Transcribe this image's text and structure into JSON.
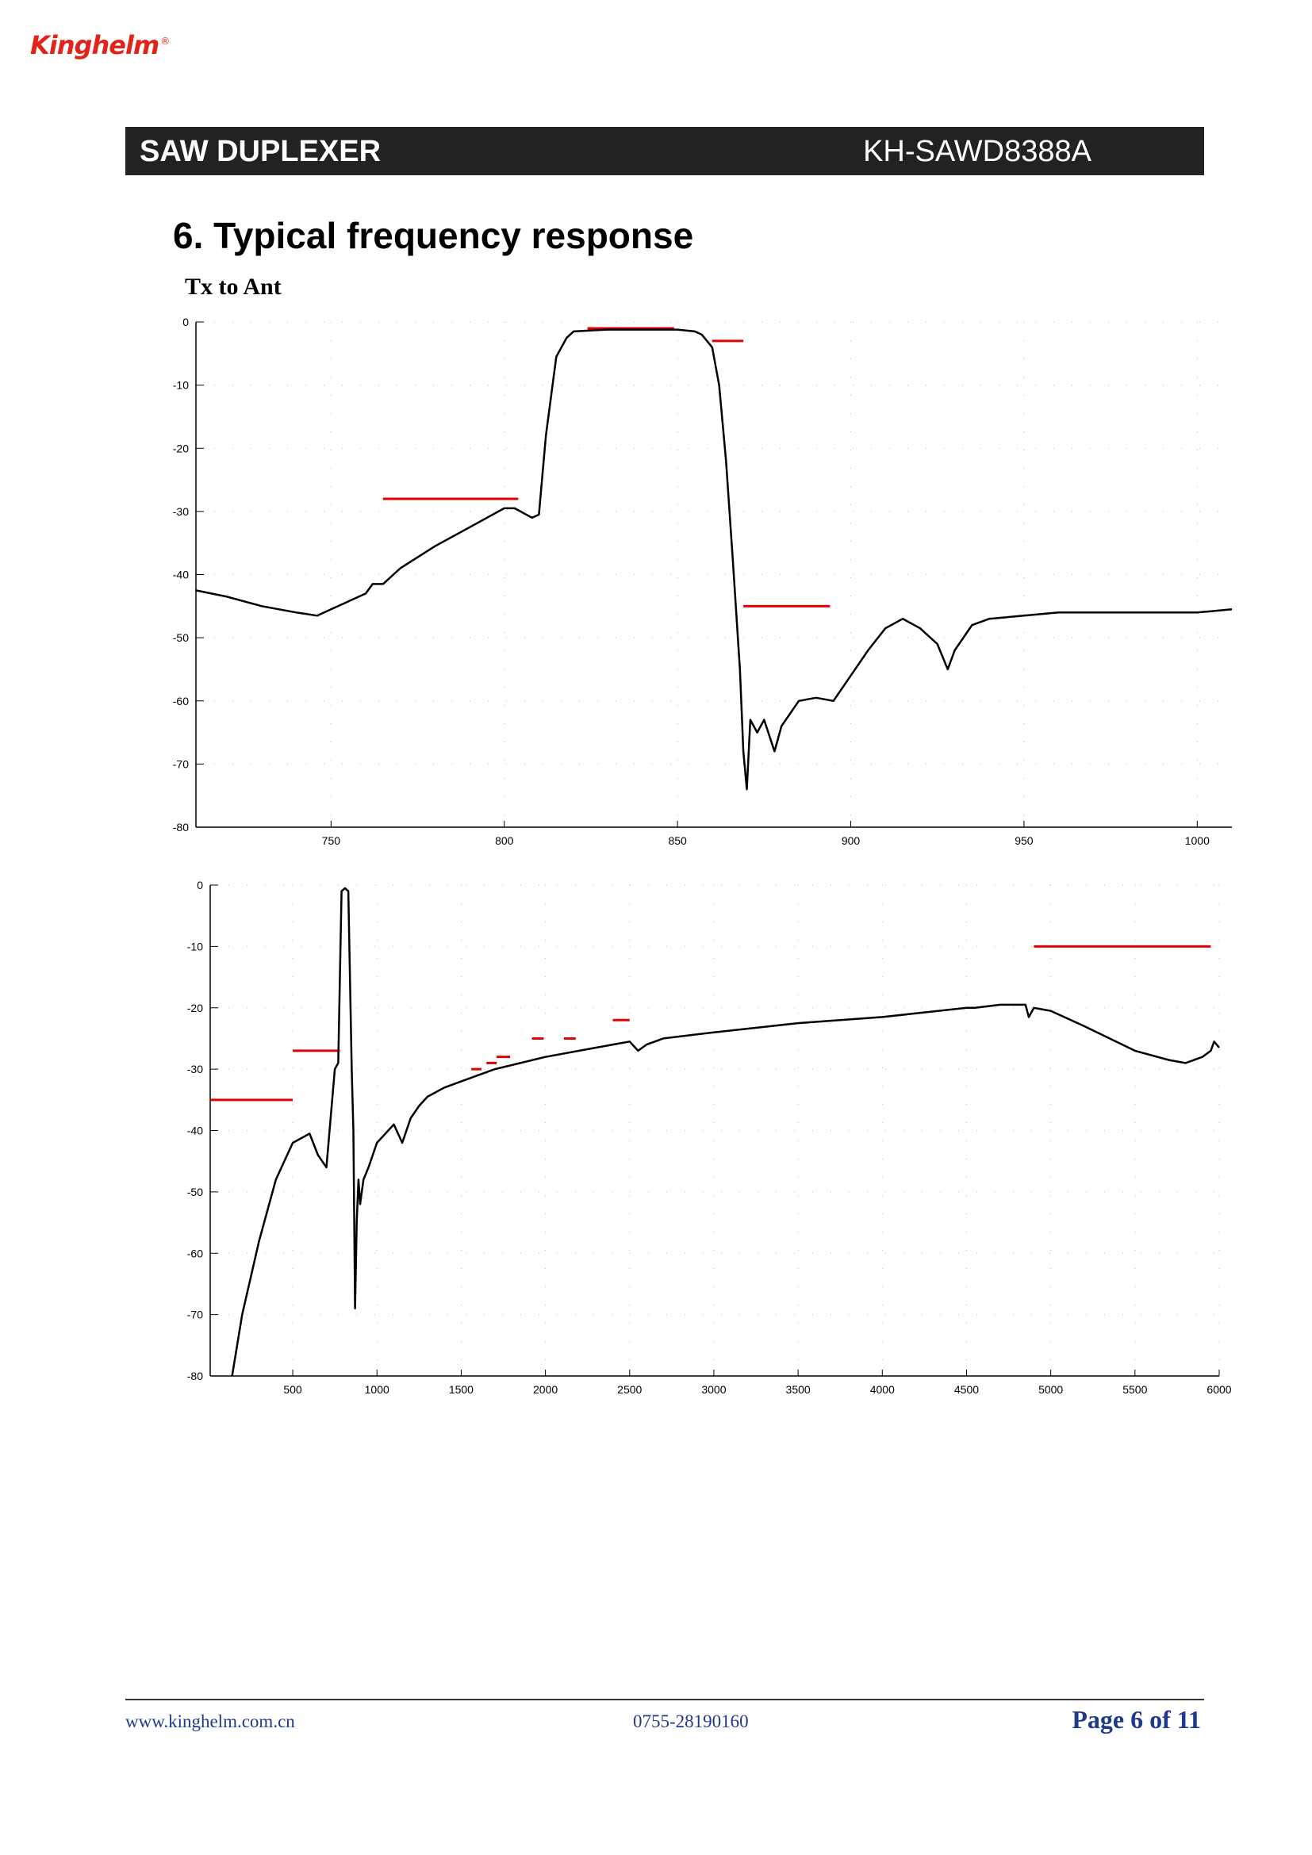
{
  "brand": {
    "name": "Kinghelm",
    "registered": "®"
  },
  "header": {
    "product_type": "SAW DUPLEXER",
    "part_number": "KH-SAWD8388A"
  },
  "section": {
    "title": "6. Typical frequency response"
  },
  "chart_data": [
    {
      "type": "line",
      "title": "Tx to Ant",
      "xlabel": "",
      "ylabel": "",
      "xlim": [
        711,
        1010
      ],
      "ylim": [
        -80,
        0
      ],
      "x_ticks": [
        "750",
        "800",
        "850",
        "900",
        "950",
        "1000"
      ],
      "y_ticks": [
        "0",
        "-10",
        "-20",
        "-30",
        "-40",
        "-50",
        "-60",
        "-70",
        "-80"
      ],
      "grid": true,
      "colors": {
        "trace": "#000000",
        "spec": "#e00000",
        "grid": "#bbbbbb"
      },
      "series": [
        {
          "x": [
            711,
            720,
            730,
            740,
            746,
            750,
            760,
            762,
            765,
            770,
            780,
            790,
            800,
            803,
            808,
            810,
            812,
            815,
            818,
            820,
            830,
            840,
            850,
            855,
            857,
            860,
            862,
            864,
            866,
            868,
            869,
            870,
            871,
            873,
            875,
            878,
            880,
            885,
            890,
            895,
            900,
            905,
            910,
            915,
            920,
            925,
            928,
            930,
            935,
            940,
            950,
            960,
            970,
            980,
            990,
            1000,
            1010
          ],
          "y": [
            -42.5,
            -43.5,
            -45,
            -46,
            -46.5,
            -45.5,
            -43,
            -41.5,
            -41.5,
            -39,
            -35.5,
            -32.5,
            -29.5,
            -29.5,
            -31,
            -30.5,
            -18,
            -5.5,
            -2.5,
            -1.5,
            -1.2,
            -1.2,
            -1.2,
            -1.5,
            -2,
            -4,
            -10,
            -22,
            -38,
            -55,
            -68,
            -74,
            -63,
            -65,
            -63,
            -68,
            -64,
            -60,
            -59.5,
            -60,
            -56,
            -52,
            -48.5,
            -47,
            -48.5,
            -51,
            -55,
            -52,
            -48,
            -47,
            -46.5,
            -46,
            -46,
            -46,
            -46,
            -46,
            -45.5
          ]
        }
      ],
      "spec_lines": [
        {
          "x": [
            765,
            804
          ],
          "y": -28
        },
        {
          "x": [
            824,
            849
          ],
          "y": -1
        },
        {
          "x": [
            860,
            869
          ],
          "y": -3
        },
        {
          "x": [
            869,
            894
          ],
          "y": -45
        }
      ]
    },
    {
      "type": "line",
      "title": "",
      "xlabel": "",
      "ylabel": "",
      "xlim": [
        10,
        6000
      ],
      "ylim": [
        -80,
        0
      ],
      "x_ticks": [
        "500",
        "1000",
        "1500",
        "2000",
        "2500",
        "3000",
        "3500",
        "4000",
        "4500",
        "5000",
        "5500",
        "6000"
      ],
      "y_ticks": [
        "0",
        "-10",
        "-20",
        "-30",
        "-40",
        "-50",
        "-60",
        "-70",
        "-80"
      ],
      "grid": true,
      "colors": {
        "trace": "#000000",
        "spec": "#e00000",
        "grid": "#bbbbbb"
      },
      "series": [
        {
          "x": [
            140,
            200,
            300,
            400,
            500,
            600,
            650,
            700,
            750,
            770,
            790,
            810,
            830,
            850,
            860,
            870,
            880,
            890,
            900,
            920,
            950,
            1000,
            1100,
            1150,
            1200,
            1250,
            1300,
            1400,
            1500,
            1700,
            2000,
            2300,
            2500,
            2550,
            2600,
            2700,
            3000,
            3500,
            4000,
            4500,
            4550,
            4700,
            4850,
            4870,
            4900,
            5000,
            5200,
            5500,
            5700,
            5800,
            5900,
            5950,
            5970,
            6000
          ],
          "y": [
            -80,
            -70,
            -58,
            -48,
            -42,
            -40.5,
            -44,
            -46,
            -30,
            -29,
            -1,
            -0.5,
            -1,
            -30,
            -40,
            -69,
            -55,
            -48,
            -52,
            -48,
            -46,
            -42,
            -39,
            -42,
            -38,
            -36,
            -34.5,
            -33,
            -32,
            -30,
            -28,
            -26.5,
            -25.5,
            -27,
            -26,
            -25,
            -24,
            -22.5,
            -21.5,
            -20,
            -20,
            -19.5,
            -19.5,
            -21.5,
            -20,
            -20.5,
            -23,
            -27,
            -28.5,
            -29,
            -28,
            -27,
            -25.5,
            -26.5
          ]
        }
      ],
      "spec_lines": [
        {
          "x": [
            10,
            500
          ],
          "y": -35
        },
        {
          "x": [
            500,
            780
          ],
          "y": -27
        },
        {
          "x": [
            1560,
            1620
          ],
          "y": -30
        },
        {
          "x": [
            1650,
            1710
          ],
          "y": -29
        },
        {
          "x": [
            1710,
            1790
          ],
          "y": -28
        },
        {
          "x": [
            1920,
            1990
          ],
          "y": -25
        },
        {
          "x": [
            2110,
            2180
          ],
          "y": -25
        },
        {
          "x": [
            2400,
            2500
          ],
          "y": -22
        },
        {
          "x": [
            4900,
            5950
          ],
          "y": -10
        }
      ]
    }
  ],
  "footer": {
    "website": "www.kinghelm.com.cn",
    "phone": "0755-28190160",
    "page": "Page 6 of 11"
  }
}
